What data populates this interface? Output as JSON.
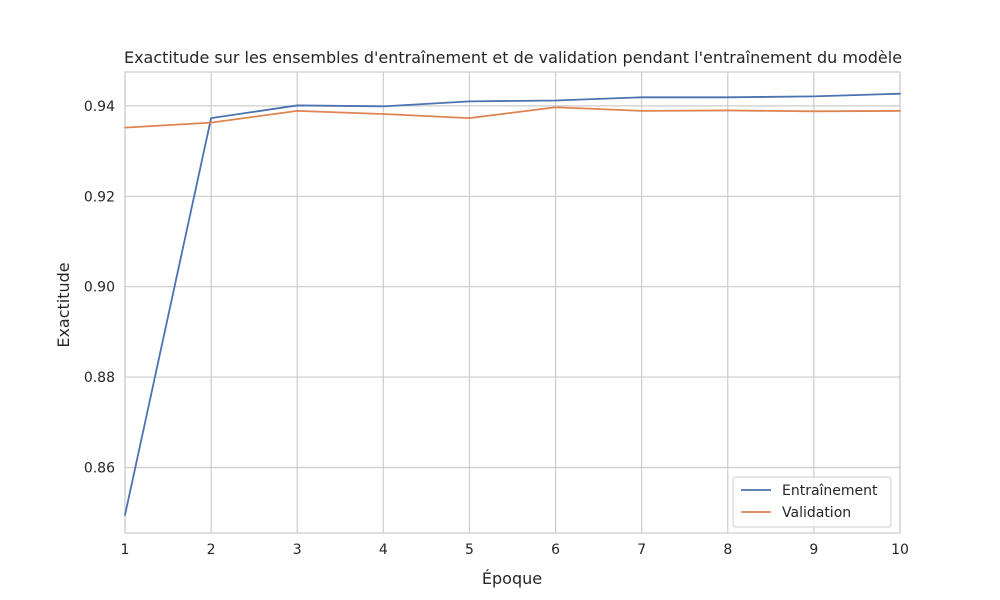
{
  "chart_data": {
    "type": "line",
    "title": "Exactitude sur les ensembles d'entraînement et de validation pendant l'entraînement du modèle",
    "xlabel": "Époque",
    "ylabel": "Exactitude",
    "x": [
      1,
      2,
      3,
      4,
      5,
      6,
      7,
      8,
      9,
      10
    ],
    "xlim": [
      1,
      10
    ],
    "ylim": [
      0.8455,
      0.9475
    ],
    "yticks": [
      0.86,
      0.88,
      0.9,
      0.92,
      0.94
    ],
    "ytick_labels": [
      "0.86",
      "0.88",
      "0.90",
      "0.92",
      "0.94"
    ],
    "xtick_labels": [
      "1",
      "2",
      "3",
      "4",
      "5",
      "6",
      "7",
      "8",
      "9",
      "10"
    ],
    "grid": true,
    "legend_position": "lower-right",
    "series": [
      {
        "name": "Entraînement",
        "color": "#4c72b0",
        "values": [
          0.8495,
          0.9373,
          0.9401,
          0.9399,
          0.941,
          0.9412,
          0.9419,
          0.9419,
          0.9421,
          0.9427
        ]
      },
      {
        "name": "Validation",
        "color": "#dd8452",
        "values": [
          0.9352,
          0.9363,
          0.9389,
          0.9382,
          0.9373,
          0.9397,
          0.9389,
          0.939,
          0.9388,
          0.9389
        ]
      }
    ]
  }
}
